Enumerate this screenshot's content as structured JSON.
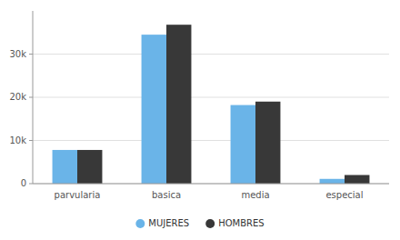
{
  "chart_data": {
    "type": "bar",
    "categories": [
      "parvularia",
      "basica",
      "media",
      "especial"
    ],
    "series": [
      {
        "name": "MUJERES",
        "color": "#6ab4e8",
        "values": [
          7800,
          34500,
          18200,
          1100
        ]
      },
      {
        "name": "HOMBRES",
        "color": "#383838",
        "values": [
          7800,
          36800,
          19000,
          2000
        ]
      }
    ],
    "ylim": [
      0,
      40000
    ],
    "yticks": [
      0,
      {
        "value": 10000,
        "label": "10k"
      },
      {
        "value": 20000,
        "label": "20k"
      },
      {
        "value": 30000,
        "label": "30k"
      }
    ],
    "grid": true,
    "legend": "bottom"
  }
}
